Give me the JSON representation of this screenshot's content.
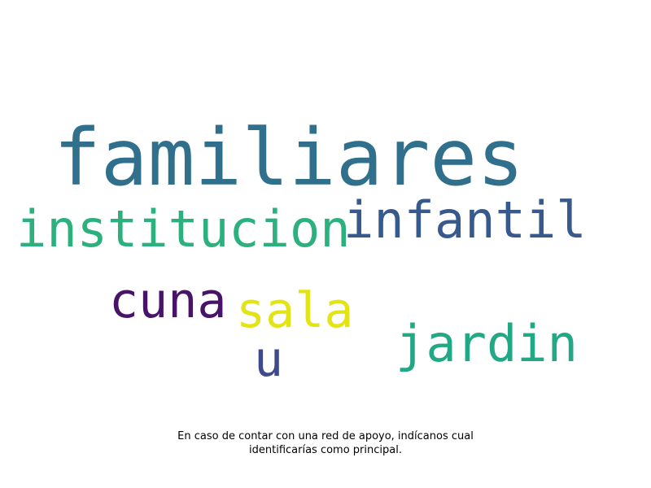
{
  "wordcloud": {
    "words": [
      {
        "id": "familiares",
        "text": "familiares",
        "color": "#30708c"
      },
      {
        "id": "institucion",
        "text": "institucion",
        "color": "#2cb17e"
      },
      {
        "id": "infantil",
        "text": "infantil",
        "color": "#38598c"
      },
      {
        "id": "cuna",
        "text": "cuna",
        "color": "#481467"
      },
      {
        "id": "sala",
        "text": "sala",
        "color": "#e3e418"
      },
      {
        "id": "jardin",
        "text": "jardin",
        "color": "#22a884"
      },
      {
        "id": "u",
        "text": "u",
        "color": "#3e4a89"
      }
    ]
  },
  "caption": {
    "line1": "En caso de contar con una red de apoyo, indícanos cual",
    "line2": "identificarías como principal."
  }
}
